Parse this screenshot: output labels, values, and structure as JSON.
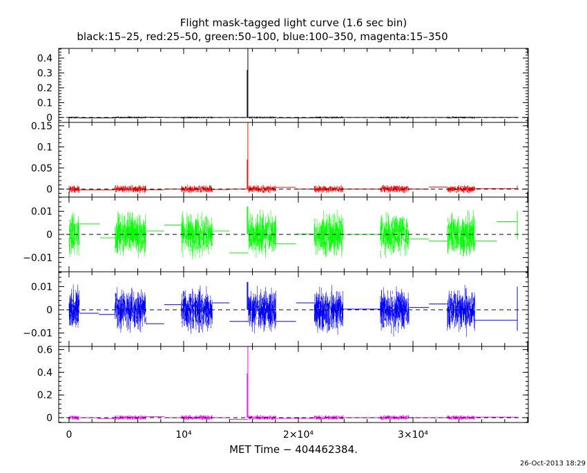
{
  "chart_data": {
    "type": "line",
    "title": "Flight mask-tagged light curve (1.6 sec bin)",
    "subtitle": "black:15–25, red:25–50, green:50–100, blue:100–350, magenta:15–350",
    "xlabel": "MET Time − 404462384.",
    "footer": "26-Oct-2013 18:29",
    "xlim": [
      -900,
      40060
    ],
    "x_ticks": [
      {
        "value": 0,
        "label": "0"
      },
      {
        "value": 10000,
        "label": "10⁴"
      },
      {
        "value": 20000,
        "label": "2×10⁴"
      },
      {
        "value": 30000,
        "label": "3×10⁴"
      }
    ],
    "data_segments": [
      [
        0,
        900
      ],
      [
        4000,
        6700
      ],
      [
        9800,
        12500
      ],
      [
        15650,
        18050
      ],
      [
        21400,
        23900
      ],
      [
        27150,
        29650
      ],
      [
        33000,
        35400
      ]
    ],
    "spike": {
      "t": 15600
    },
    "series": [
      {
        "name": "black:15-25",
        "color": "#000000",
        "ylim": [
          -0.033,
          0.465
        ],
        "noise": 0.009,
        "spike": [
          0.32,
          0.47
        ],
        "ticks": [
          {
            "v": 0,
            "l": "0"
          },
          {
            "v": 0.1,
            "l": "0.1"
          },
          {
            "v": 0.2,
            "l": "0.2"
          },
          {
            "v": 0.3,
            "l": "0.3"
          },
          {
            "v": 0.4,
            "l": "0.4"
          }
        ],
        "steps": [
          [
            900,
            4000,
            -0.003
          ],
          [
            6700,
            8300,
            0.002
          ],
          [
            8300,
            9800,
            0
          ],
          [
            12500,
            15600,
            0
          ],
          [
            18050,
            21400,
            -0.002
          ],
          [
            23900,
            27150,
            0
          ],
          [
            29650,
            33000,
            0
          ],
          [
            35400,
            39100,
            0.001
          ]
        ]
      },
      {
        "name": "red:25-50",
        "color": "#ff0000",
        "ylim": [
          -0.019,
          0.158
        ],
        "noise": 0.012,
        "spike": [
          0.07,
          0.16
        ],
        "ticks": [
          {
            "v": 0,
            "l": "0"
          },
          {
            "v": 0.05,
            "l": "0.05"
          },
          {
            "v": 0.1,
            "l": "0.1"
          },
          {
            "v": 0.15,
            "l": "0.15"
          }
        ],
        "steps": [
          [
            900,
            4000,
            -0.002
          ],
          [
            6700,
            8300,
            -0.0015
          ],
          [
            8300,
            9800,
            0
          ],
          [
            12500,
            14000,
            -0.001
          ],
          [
            14000,
            15600,
            0
          ],
          [
            18050,
            19800,
            0.004
          ],
          [
            19800,
            21400,
            0
          ],
          [
            23900,
            27150,
            0
          ],
          [
            29650,
            31400,
            0
          ],
          [
            31400,
            33000,
            0.005
          ],
          [
            35400,
            39100,
            0.001
          ]
        ],
        "endbar": [
          0,
          0.008
        ]
      },
      {
        "name": "green:50-100",
        "color": "#00ff00",
        "ylim": [
          -0.0161,
          0.0161
        ],
        "noise": 0.012,
        "spike": [
          0.012,
          0.012
        ],
        "ticks": [
          {
            "v": -0.01,
            "l": "−0.01"
          },
          {
            "v": 0,
            "l": "0"
          },
          {
            "v": 0.01,
            "l": "0.01"
          }
        ],
        "steps": [
          [
            900,
            2700,
            0.0045
          ],
          [
            2700,
            4000,
            -0.0015
          ],
          [
            6700,
            8300,
            0.0015
          ],
          [
            8300,
            9800,
            0.004
          ],
          [
            12500,
            14000,
            0.0015
          ],
          [
            14000,
            15650,
            -0.008
          ],
          [
            18050,
            19800,
            -0.004
          ],
          [
            19800,
            21400,
            0.0002
          ],
          [
            23900,
            27150,
            0
          ],
          [
            29650,
            31400,
            -0.002
          ],
          [
            31400,
            33000,
            -0.0028
          ],
          [
            35400,
            37300,
            -0.0028
          ],
          [
            37300,
            39100,
            0.0055
          ]
        ],
        "endbar": [
          -0.002,
          0.01
        ]
      },
      {
        "name": "blue:100-350",
        "color": "#0000ff",
        "ylim": [
          -0.0158,
          0.0164
        ],
        "noise": 0.012,
        "spike": [
          0.012,
          0.012
        ],
        "ticks": [
          {
            "v": -0.01,
            "l": "−0.01"
          },
          {
            "v": 0,
            "l": "0"
          },
          {
            "v": 0.01,
            "l": "0.01"
          }
        ],
        "steps": [
          [
            900,
            2600,
            -0.0015
          ],
          [
            2600,
            4000,
            -0.002
          ],
          [
            6700,
            8300,
            -0.006
          ],
          [
            8300,
            9800,
            0.0022
          ],
          [
            12500,
            14000,
            0.003
          ],
          [
            14000,
            15650,
            -0.005
          ],
          [
            18050,
            19800,
            -0.005
          ],
          [
            19800,
            21400,
            0.003
          ],
          [
            23900,
            27150,
            0.0003
          ],
          [
            29650,
            31400,
            0.001
          ],
          [
            31400,
            33000,
            0.0025
          ],
          [
            35400,
            39100,
            -0.0045
          ]
        ],
        "endbar": [
          -0.009,
          0.01
        ]
      },
      {
        "name": "magenta:15-350",
        "color": "#ff00ff",
        "ylim": [
          -0.043,
          0.628
        ],
        "noise": 0.028,
        "spike": [
          0.39,
          0.63
        ],
        "ticks": [
          {
            "v": 0,
            "l": "0"
          },
          {
            "v": 0.2,
            "l": "0.2"
          },
          {
            "v": 0.4,
            "l": "0.4"
          },
          {
            "v": 0.6,
            "l": "0.6"
          }
        ],
        "steps": [
          [
            900,
            2500,
            0
          ],
          [
            2500,
            4000,
            -0.008
          ],
          [
            6700,
            8300,
            0.008
          ],
          [
            8300,
            9800,
            0
          ],
          [
            12500,
            14000,
            0
          ],
          [
            14000,
            15600,
            -0.015
          ],
          [
            18050,
            21400,
            -0.006
          ],
          [
            23900,
            27150,
            0
          ],
          [
            29650,
            33000,
            0
          ],
          [
            35400,
            39100,
            0.004
          ]
        ]
      }
    ]
  }
}
